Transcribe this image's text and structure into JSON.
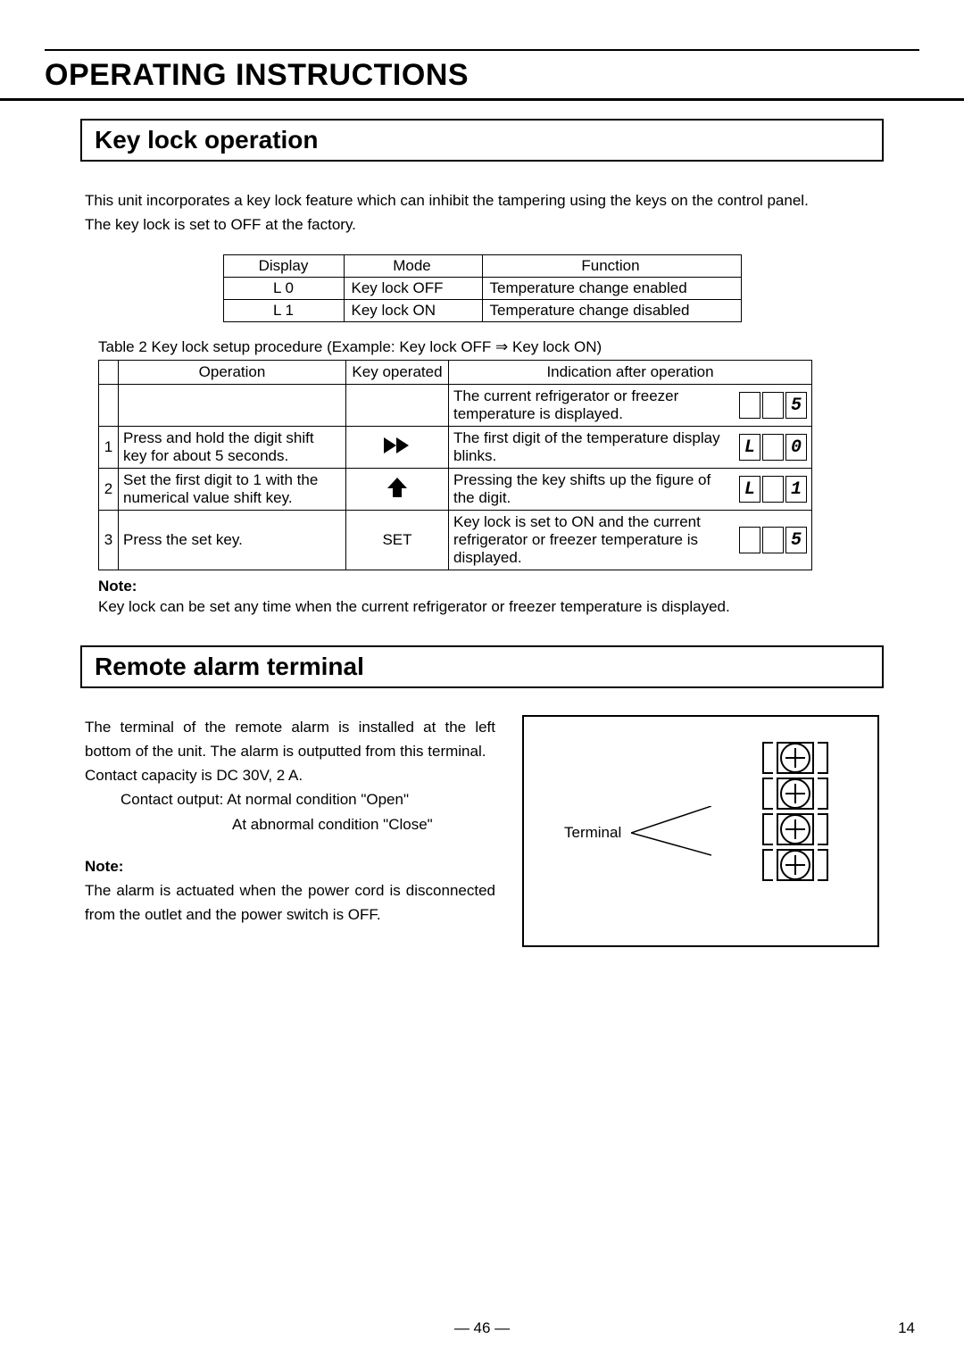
{
  "main_title": "OPERATING INSTRUCTIONS",
  "section1": {
    "title": "Key lock operation",
    "intro1": "This unit incorporates a key lock feature which can inhibit the tampering using the keys on the control panel.",
    "intro2": "The key lock is set to OFF at the factory.",
    "table1": {
      "headers": {
        "c1": "Display",
        "c2": "Mode",
        "c3": "Function"
      },
      "rows": [
        {
          "display": "L 0",
          "mode": "Key lock OFF",
          "func": "Temperature change enabled"
        },
        {
          "display": "L 1",
          "mode": "Key lock ON",
          "func": "Temperature change disabled"
        }
      ]
    },
    "caption": "Table 2   Key lock setup procedure (Example:   Key lock OFF  ⇒  Key lock ON)",
    "table2": {
      "headers": {
        "c1": "",
        "c2": "Operation",
        "c3": "Key operated",
        "c4": "Indication after operation"
      },
      "rows": [
        {
          "num": "",
          "op": "",
          "key": "",
          "ind": "The current refrigerator or freezer temperature is displayed.",
          "disp": [
            "",
            "",
            "5"
          ],
          "blink": []
        },
        {
          "num": "1",
          "op": "Press and hold the digit shift key for about 5 seconds.",
          "key": "ffwd",
          "ind": "The first digit of the temperature display blinks.",
          "disp": [
            "L",
            "",
            "0"
          ],
          "blink": [
            2
          ]
        },
        {
          "num": "2",
          "op": "Set the first digit to 1 with the numerical value shift key.",
          "key": "up",
          "ind": "Pressing the key shifts up the figure of the digit.",
          "disp": [
            "L",
            "",
            "1"
          ],
          "blink": [
            2
          ]
        },
        {
          "num": "3",
          "op": "Press the set key.",
          "key": "SET",
          "ind": "Key lock is set to ON and the current refrigerator or freezer temperature is displayed.",
          "disp": [
            "",
            "",
            "5"
          ],
          "blink": []
        }
      ]
    },
    "note_label": "Note:",
    "note_text": "Key lock can be set any time when the current refrigerator or freezer temperature is displayed."
  },
  "section2": {
    "title": "Remote alarm terminal",
    "p1": "The terminal of the remote alarm is installed at the left bottom of the unit.  The alarm is outputted from this terminal.",
    "p2": "Contact capacity is DC 30V, 2 A.",
    "p3": "Contact output:   At normal condition \"Open\"",
    "p4": "At abnormal condition \"Close\"",
    "note_label": "Note:",
    "note_text": "The alarm is actuated when the power cord is disconnected from the outlet and the power switch is OFF.",
    "diagram_label": "Terminal"
  },
  "page_center": "― 46 ―",
  "page_right": "14"
}
